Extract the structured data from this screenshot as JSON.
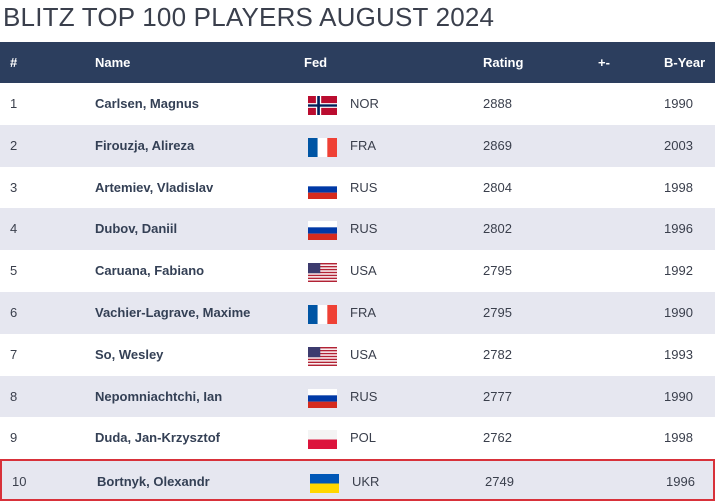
{
  "page": {
    "title": "BLITZ TOP 100 PLAYERS AUGUST 2024"
  },
  "table": {
    "headers": {
      "rank": "#",
      "name": "Name",
      "fed": "Fed",
      "rating": "Rating",
      "diff": "+-",
      "byear": "B-Year"
    },
    "rows": [
      {
        "rank": "1",
        "name": "Carlsen, Magnus",
        "fed": "NOR",
        "flag": "norway-flag-icon",
        "rating": "2888",
        "diff": "",
        "byear": "1990"
      },
      {
        "rank": "2",
        "name": "Firouzja, Alireza",
        "fed": "FRA",
        "flag": "france-flag-icon",
        "rating": "2869",
        "diff": "",
        "byear": "2003"
      },
      {
        "rank": "3",
        "name": "Artemiev, Vladislav",
        "fed": "RUS",
        "flag": "russia-flag-icon",
        "rating": "2804",
        "diff": "",
        "byear": "1998"
      },
      {
        "rank": "4",
        "name": "Dubov, Daniil",
        "fed": "RUS",
        "flag": "russia-flag-icon",
        "rating": "2802",
        "diff": "",
        "byear": "1996"
      },
      {
        "rank": "5",
        "name": "Caruana, Fabiano",
        "fed": "USA",
        "flag": "usa-flag-icon",
        "rating": "2795",
        "diff": "",
        "byear": "1992"
      },
      {
        "rank": "6",
        "name": "Vachier-Lagrave, Maxime",
        "fed": "FRA",
        "flag": "france-flag-icon",
        "rating": "2795",
        "diff": "",
        "byear": "1990"
      },
      {
        "rank": "7",
        "name": "So, Wesley",
        "fed": "USA",
        "flag": "usa-flag-icon",
        "rating": "2782",
        "diff": "",
        "byear": "1993"
      },
      {
        "rank": "8",
        "name": "Nepomniachtchi, Ian",
        "fed": "RUS",
        "flag": "russia-flag-icon",
        "rating": "2777",
        "diff": "",
        "byear": "1990"
      },
      {
        "rank": "9",
        "name": "Duda, Jan-Krzysztof",
        "fed": "POL",
        "flag": "poland-flag-icon",
        "rating": "2762",
        "diff": "",
        "byear": "1998"
      },
      {
        "rank": "10",
        "name": "Bortnyk, Olexandr",
        "fed": "UKR",
        "flag": "ukraine-flag-icon",
        "rating": "2749",
        "diff": "",
        "byear": "1996"
      }
    ]
  },
  "colors": {
    "header_bg": "#2c3e5e",
    "alt_row_bg": "#e6e7f0",
    "highlight_border": "#d8313a",
    "text": "#3a3f4c"
  }
}
